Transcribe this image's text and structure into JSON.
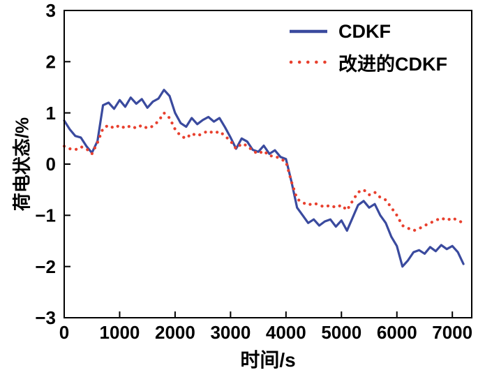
{
  "figure": {
    "background": "#ffffff",
    "axis_color": "#000000"
  },
  "chart_data": {
    "type": "line",
    "title": "",
    "xlabel": "时间/s",
    "ylabel": "荷电状态/%",
    "xlim": [
      0,
      7350
    ],
    "ylim": [
      -3,
      3
    ],
    "xticks": [
      0,
      1000,
      2000,
      3000,
      4000,
      5000,
      6000,
      7000
    ],
    "yticks": [
      -3,
      -2,
      -1,
      0,
      1,
      2,
      3
    ],
    "grid": false,
    "legend_position": "top-right-inside",
    "series": [
      {
        "name": "CDKF",
        "color": "#3a4a9e",
        "style": "solid",
        "x_start": 0,
        "x_step": 100,
        "values": [
          0.85,
          0.68,
          0.55,
          0.52,
          0.35,
          0.22,
          0.45,
          1.15,
          1.2,
          1.08,
          1.25,
          1.12,
          1.3,
          1.18,
          1.27,
          1.1,
          1.22,
          1.28,
          1.45,
          1.33,
          1.0,
          0.8,
          0.73,
          0.9,
          0.78,
          0.86,
          0.92,
          0.83,
          0.9,
          0.72,
          0.52,
          0.3,
          0.5,
          0.44,
          0.28,
          0.24,
          0.36,
          0.2,
          0.27,
          0.14,
          0.1,
          -0.35,
          -0.85,
          -1.0,
          -1.15,
          -1.08,
          -1.2,
          -1.12,
          -1.08,
          -1.22,
          -1.1,
          -1.3,
          -1.05,
          -0.8,
          -0.72,
          -0.85,
          -0.78,
          -1.0,
          -1.15,
          -1.42,
          -1.6,
          -2.0,
          -1.88,
          -1.72,
          -1.68,
          -1.75,
          -1.62,
          -1.7,
          -1.58,
          -1.66,
          -1.6,
          -1.72,
          -1.95
        ]
      },
      {
        "name": "改进的CDKF",
        "color": "#e8402e",
        "style": "dotted",
        "x_start": 0,
        "x_step": 100,
        "values": [
          0.35,
          0.3,
          0.28,
          0.34,
          0.3,
          0.2,
          0.42,
          0.7,
          0.76,
          0.7,
          0.76,
          0.7,
          0.75,
          0.7,
          0.76,
          0.7,
          0.74,
          0.84,
          1.0,
          0.9,
          0.68,
          0.55,
          0.5,
          0.6,
          0.55,
          0.6,
          0.65,
          0.6,
          0.64,
          0.55,
          0.45,
          0.3,
          0.4,
          0.36,
          0.26,
          0.2,
          0.26,
          0.16,
          0.16,
          0.1,
          0.05,
          -0.35,
          -0.68,
          -0.75,
          -0.8,
          -0.76,
          -0.8,
          -0.84,
          -0.8,
          -0.85,
          -0.8,
          -0.9,
          -0.72,
          -0.55,
          -0.5,
          -0.6,
          -0.55,
          -0.65,
          -0.7,
          -0.85,
          -1.0,
          -1.2,
          -1.25,
          -1.3,
          -1.26,
          -1.2,
          -1.15,
          -1.1,
          -1.05,
          -1.1,
          -1.05,
          -1.1,
          -1.15
        ]
      }
    ]
  }
}
